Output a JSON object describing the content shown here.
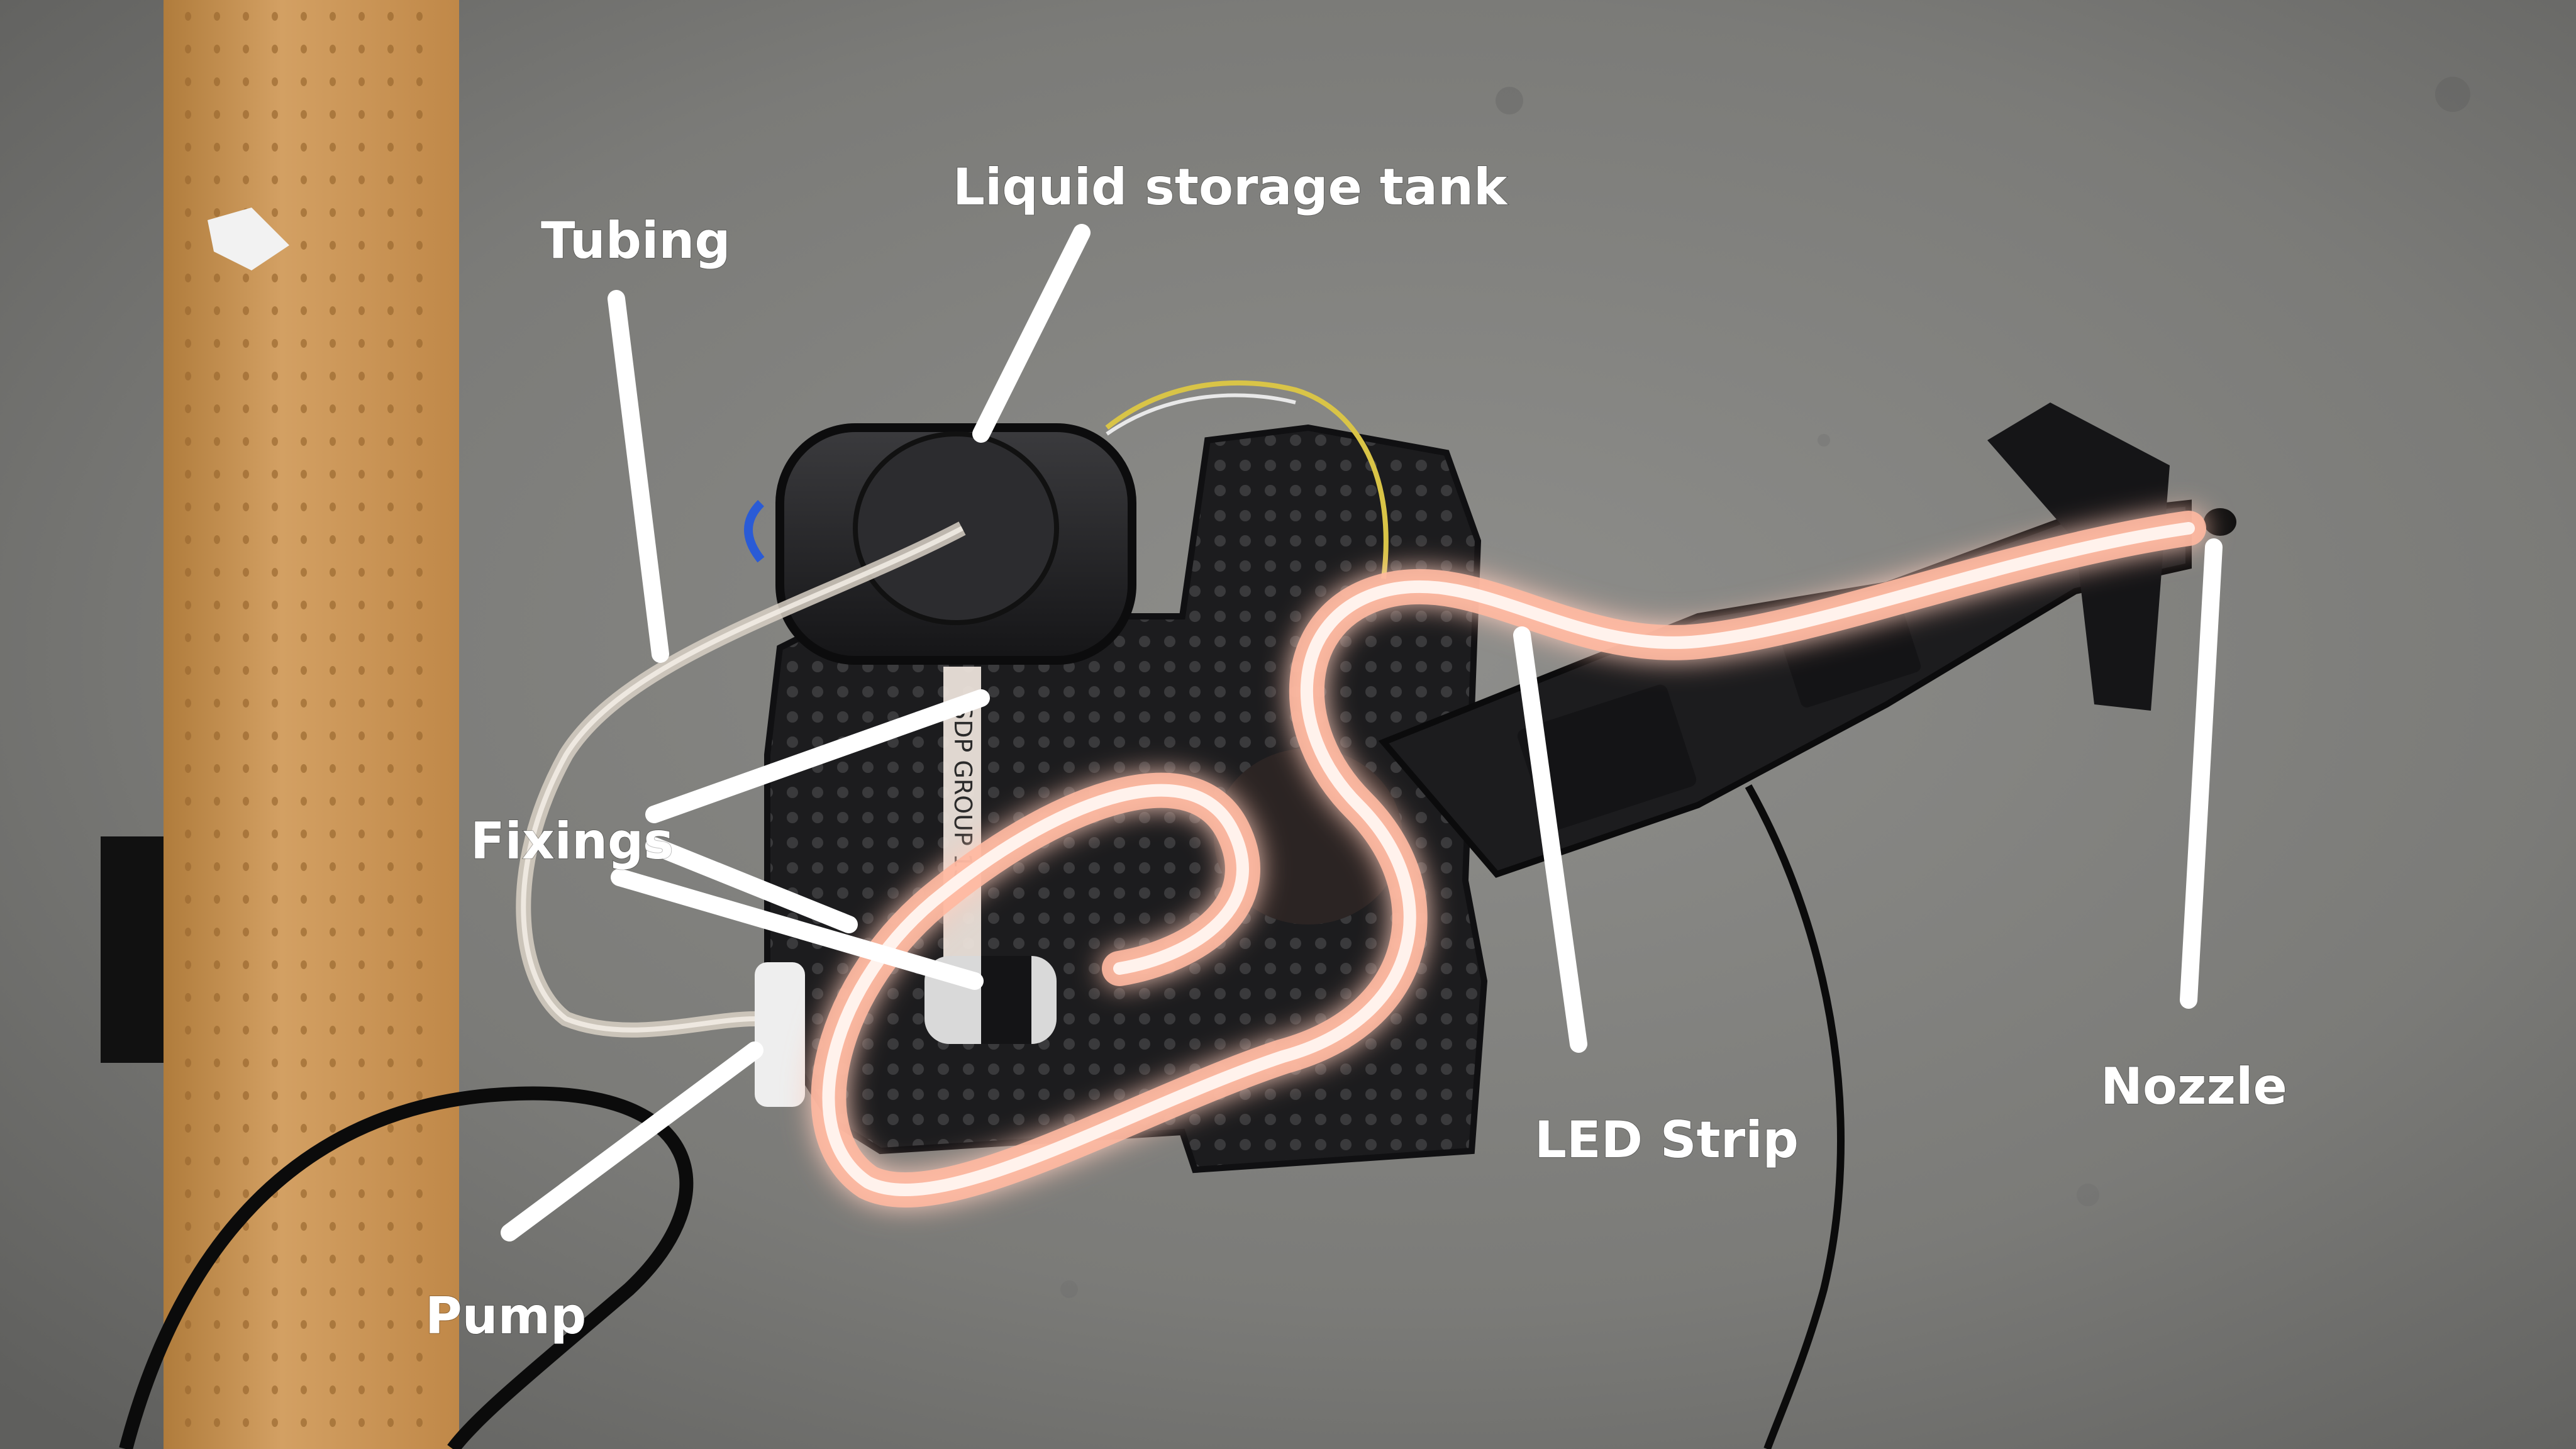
{
  "labels": {
    "liquid_storage_tank": "Liquid storage tank",
    "tubing": "Tubing",
    "fixings": "Fixings",
    "pump": "Pump",
    "led_strip": "LED Strip",
    "nozzle": "Nozzle"
  },
  "platform_stamp": "SDP GROUP 13",
  "colors": {
    "floor": "#7d7d7a",
    "wood": "#c99552",
    "chassis": "#1b1b1d",
    "led_glow": "#ffb39a",
    "label_text": "#ffffff",
    "leader_lines": "#ffffff"
  }
}
